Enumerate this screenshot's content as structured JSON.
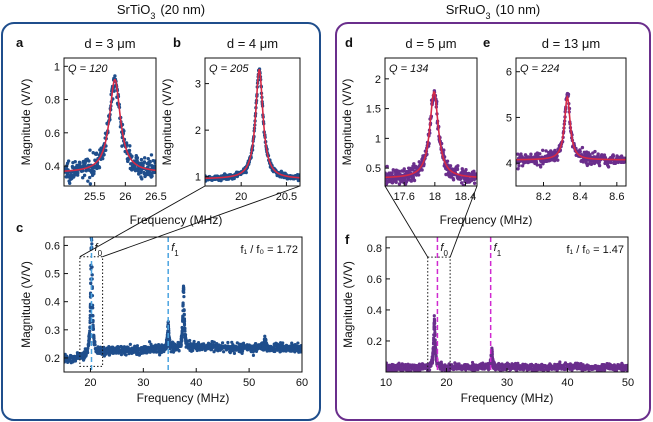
{
  "groups": [
    {
      "material": "SrTiO",
      "sub": "3",
      "thickness": "(20 nm)",
      "color": "#1f4e8c"
    },
    {
      "material": "SrRuO",
      "sub": "3",
      "thickness": "(10 nm)",
      "color": "#6a2e8c"
    }
  ],
  "chart_data": [
    {
      "id": "a",
      "type": "scatter",
      "panel_label": "a",
      "title": "d = 3 μm",
      "q_label": "Q = 120",
      "ylabel": "Magnitude (V/V)",
      "xlabel": "",
      "xlim": [
        25.0,
        26.5
      ],
      "ylim": [
        0.28,
        1.05
      ],
      "xticks": [
        25.5,
        26,
        26.5
      ],
      "xtick_labels": [
        "25.5",
        "26",
        "26.5"
      ],
      "yticks": [
        0.4,
        0.6,
        0.8,
        1
      ],
      "ytick_labels": [
        "0.4",
        "0.6",
        "0.8",
        "1"
      ],
      "series": [
        {
          "name": "data",
          "kind": "scatter",
          "color": "#1f4e8c"
        },
        {
          "name": "fit",
          "kind": "line",
          "color": "#d62a46"
        }
      ],
      "resonance": {
        "f0_MHz": 25.83,
        "Q": 120,
        "baseline": 0.36,
        "peak": 0.92,
        "noise": 0.03
      }
    },
    {
      "id": "b",
      "type": "scatter",
      "panel_label": "b",
      "title": "d = 4 μm",
      "q_label": "Q = 205",
      "ylabel": "Magnitude (V/V)",
      "xlabel": "",
      "xlim": [
        19.6,
        20.65
      ],
      "ylim": [
        0.8,
        3.55
      ],
      "xticks": [
        20,
        20.5
      ],
      "xtick_labels": [
        "20",
        "20.5"
      ],
      "yticks": [
        1,
        2,
        3
      ],
      "ytick_labels": [
        "1",
        "2",
        "3"
      ],
      "series": [
        {
          "name": "data",
          "kind": "scatter",
          "color": "#1f4e8c"
        },
        {
          "name": "fit",
          "kind": "line",
          "color": "#d62a46"
        }
      ],
      "resonance": {
        "f0_MHz": 20.2,
        "Q": 205,
        "baseline": 0.95,
        "peak": 3.3,
        "noise": 0.03
      }
    },
    {
      "id": "c",
      "type": "scatter",
      "panel_label": "c",
      "title": "",
      "ylabel": "Magnitude (V/V)",
      "xlabel": "Frequency (MHz)",
      "xlim": [
        15,
        60
      ],
      "ylim": [
        0.15,
        0.63
      ],
      "xticks": [
        20,
        30,
        40,
        50,
        60
      ],
      "xtick_labels": [
        "20",
        "30",
        "40",
        "50",
        "60"
      ],
      "yticks": [
        0.2,
        0.3,
        0.4,
        0.5,
        0.6
      ],
      "ytick_labels": [
        "0.2",
        "0.3",
        "0.4",
        "0.5",
        "0.6"
      ],
      "series": [
        {
          "name": "data",
          "kind": "scatter",
          "color": "#1f4e8c"
        }
      ],
      "baseline": [
        [
          15,
          0.195
        ],
        [
          20.5,
          0.21
        ],
        [
          23,
          0.225
        ],
        [
          30,
          0.228
        ],
        [
          40,
          0.24
        ],
        [
          50,
          0.236
        ],
        [
          60,
          0.235
        ]
      ],
      "peaks": [
        {
          "f_MHz": 20.2,
          "height": 0.43,
          "width": 0.35
        },
        {
          "f_MHz": 34.7,
          "height": 0.09,
          "width": 0.25
        },
        {
          "f_MHz": 37.6,
          "height": 0.21,
          "width": 0.3
        },
        {
          "f_MHz": 53,
          "height": 0.03,
          "width": 0.25
        }
      ],
      "noise": 0.008,
      "markers": [
        {
          "label": "f",
          "sub": "0",
          "x_MHz": 20.2
        },
        {
          "label": "f",
          "sub": "1",
          "x_MHz": 34.7
        }
      ],
      "marker_color": "#4aa3e0",
      "ratio_text": "f₁ / f₀ = 1.72",
      "zoom_box": {
        "x": [
          18.0,
          22.3
        ],
        "y": [
          0.17,
          0.56
        ]
      },
      "zoom_source_panel": "b"
    },
    {
      "id": "d",
      "type": "scatter",
      "panel_label": "d",
      "title": "d = 5 μm",
      "q_label": "Q = 134",
      "ylabel": "Magnitude (V/V)",
      "xlabel": "",
      "xlim": [
        17.35,
        18.55
      ],
      "ylim": [
        0.2,
        2.35
      ],
      "xticks": [
        17.6,
        18,
        18.4
      ],
      "xtick_labels": [
        "17.6",
        "18",
        "18.4"
      ],
      "yticks": [
        0.5,
        1,
        1.5,
        2
      ],
      "ytick_labels": [
        "0.5",
        "1",
        "1.5",
        "2"
      ],
      "series": [
        {
          "name": "data",
          "kind": "scatter",
          "color": "#6a2e8c"
        },
        {
          "name": "fit",
          "kind": "line",
          "color": "#d62a46"
        }
      ],
      "resonance": {
        "f0_MHz": 17.99,
        "Q": 134,
        "baseline": 0.33,
        "peak": 1.78,
        "noise": 0.07
      }
    },
    {
      "id": "e",
      "type": "scatter",
      "panel_label": "e",
      "title": "d = 13 μm",
      "q_label": "Q = 224",
      "ylabel": "",
      "xlabel": "",
      "xlim": [
        8.05,
        8.65
      ],
      "ylim": [
        3.5,
        6.3
      ],
      "xticks": [
        8.2,
        8.4,
        8.6
      ],
      "xtick_labels": [
        "8.2",
        "8.4",
        "8.6"
      ],
      "yticks": [
        4,
        5,
        6
      ],
      "ytick_labels": [
        "4",
        "5",
        "6"
      ],
      "series": [
        {
          "name": "data",
          "kind": "scatter",
          "color": "#6a2e8c"
        },
        {
          "name": "fit",
          "kind": "line",
          "color": "#d62a46"
        }
      ],
      "resonance": {
        "f0_MHz": 8.33,
        "Q": 224,
        "baseline": 4.07,
        "peak": 5.45,
        "noise": 0.06
      }
    },
    {
      "id": "f",
      "type": "scatter",
      "panel_label": "f",
      "title": "",
      "ylabel": "Magnitude (V/V)",
      "xlabel": "Frequency (MHz)",
      "xlim": [
        10,
        50
      ],
      "ylim": [
        0.0,
        0.87
      ],
      "xticks": [
        10,
        20,
        30,
        40,
        50
      ],
      "xtick_labels": [
        "10",
        "20",
        "30",
        "40",
        "50"
      ],
      "yticks": [
        0.2,
        0.4,
        0.6,
        0.8
      ],
      "ytick_labels": [
        "0.2",
        "0.4",
        "0.6",
        "0.8"
      ],
      "series": [
        {
          "name": "data",
          "kind": "scatter",
          "color": "#6a2e8c"
        }
      ],
      "baseline": [
        [
          10,
          0.03
        ],
        [
          30,
          0.03
        ],
        [
          50,
          0.03
        ]
      ],
      "peaks": [
        {
          "f_MHz": 18.0,
          "height": 0.3,
          "width": 0.3
        },
        {
          "f_MHz": 27.5,
          "height": 0.11,
          "width": 0.25
        }
      ],
      "noise": 0.012,
      "markers": [
        {
          "label": "f",
          "sub": "0",
          "x_MHz": 18.5
        },
        {
          "label": "f",
          "sub": "1",
          "x_MHz": 27.3
        }
      ],
      "marker_color": "#d02ad0",
      "ratio_text": "f₁ / f₀ = 1.47",
      "zoom_box": {
        "x": [
          16.9,
          20.6
        ],
        "y": [
          0.0,
          0.74
        ]
      },
      "zoom_source_panel": "d"
    }
  ]
}
